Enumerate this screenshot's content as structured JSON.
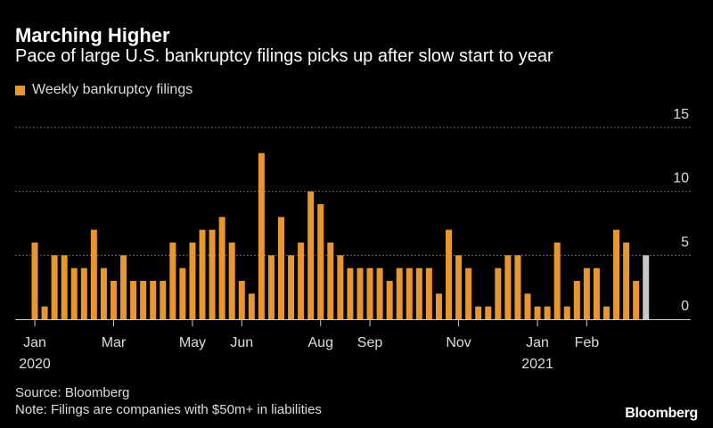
{
  "chart_data": {
    "type": "bar",
    "title": "Marching Higher",
    "subtitle": "Pace of large U.S. bankruptcy filings picks up after slow start to year",
    "series": [
      {
        "name": "Weekly bankruptcy filings",
        "color": "#e8962f",
        "values": [
          6,
          1,
          5,
          5,
          4,
          4,
          7,
          4,
          3,
          5,
          3,
          3,
          3,
          3,
          6,
          4,
          6,
          7,
          7,
          8,
          6,
          3,
          2,
          13,
          5,
          8,
          5,
          6,
          10,
          9,
          6,
          5,
          4,
          4,
          4,
          4,
          3,
          4,
          4,
          4,
          4,
          2,
          7,
          5,
          4,
          1,
          1,
          4,
          5,
          5,
          2,
          1,
          1,
          6,
          1,
          3,
          4,
          4,
          1,
          7,
          6,
          3,
          5
        ]
      }
    ],
    "highlight": {
      "index": 62,
      "color": "#c8c8c8"
    },
    "y_ticks": [
      "15",
      "10",
      "5",
      "0"
    ],
    "ylim": [
      0,
      15
    ],
    "x_ticks": [
      {
        "label": "Jan",
        "index": 0
      },
      {
        "label": "Mar",
        "index": 8
      },
      {
        "label": "May",
        "index": 16
      },
      {
        "label": "Jun",
        "index": 21
      },
      {
        "label": "Aug",
        "index": 29
      },
      {
        "label": "Sep",
        "index": 34
      },
      {
        "label": "Nov",
        "index": 43
      },
      {
        "label": "Jan",
        "index": 51
      },
      {
        "label": "Feb",
        "index": 56
      }
    ],
    "year_labels": [
      {
        "label": "2020",
        "index": 0
      },
      {
        "label": "2021",
        "index": 51
      }
    ],
    "colors": {
      "bar": "#e8962f",
      "highlight": "#c8c8c8",
      "grid": "#888888",
      "text": "#dddddd"
    }
  },
  "footer": {
    "source": "Source: Bloomberg",
    "note": "Note: Filings are companies with $50m+ in liabilities"
  },
  "brand": "Bloomberg"
}
